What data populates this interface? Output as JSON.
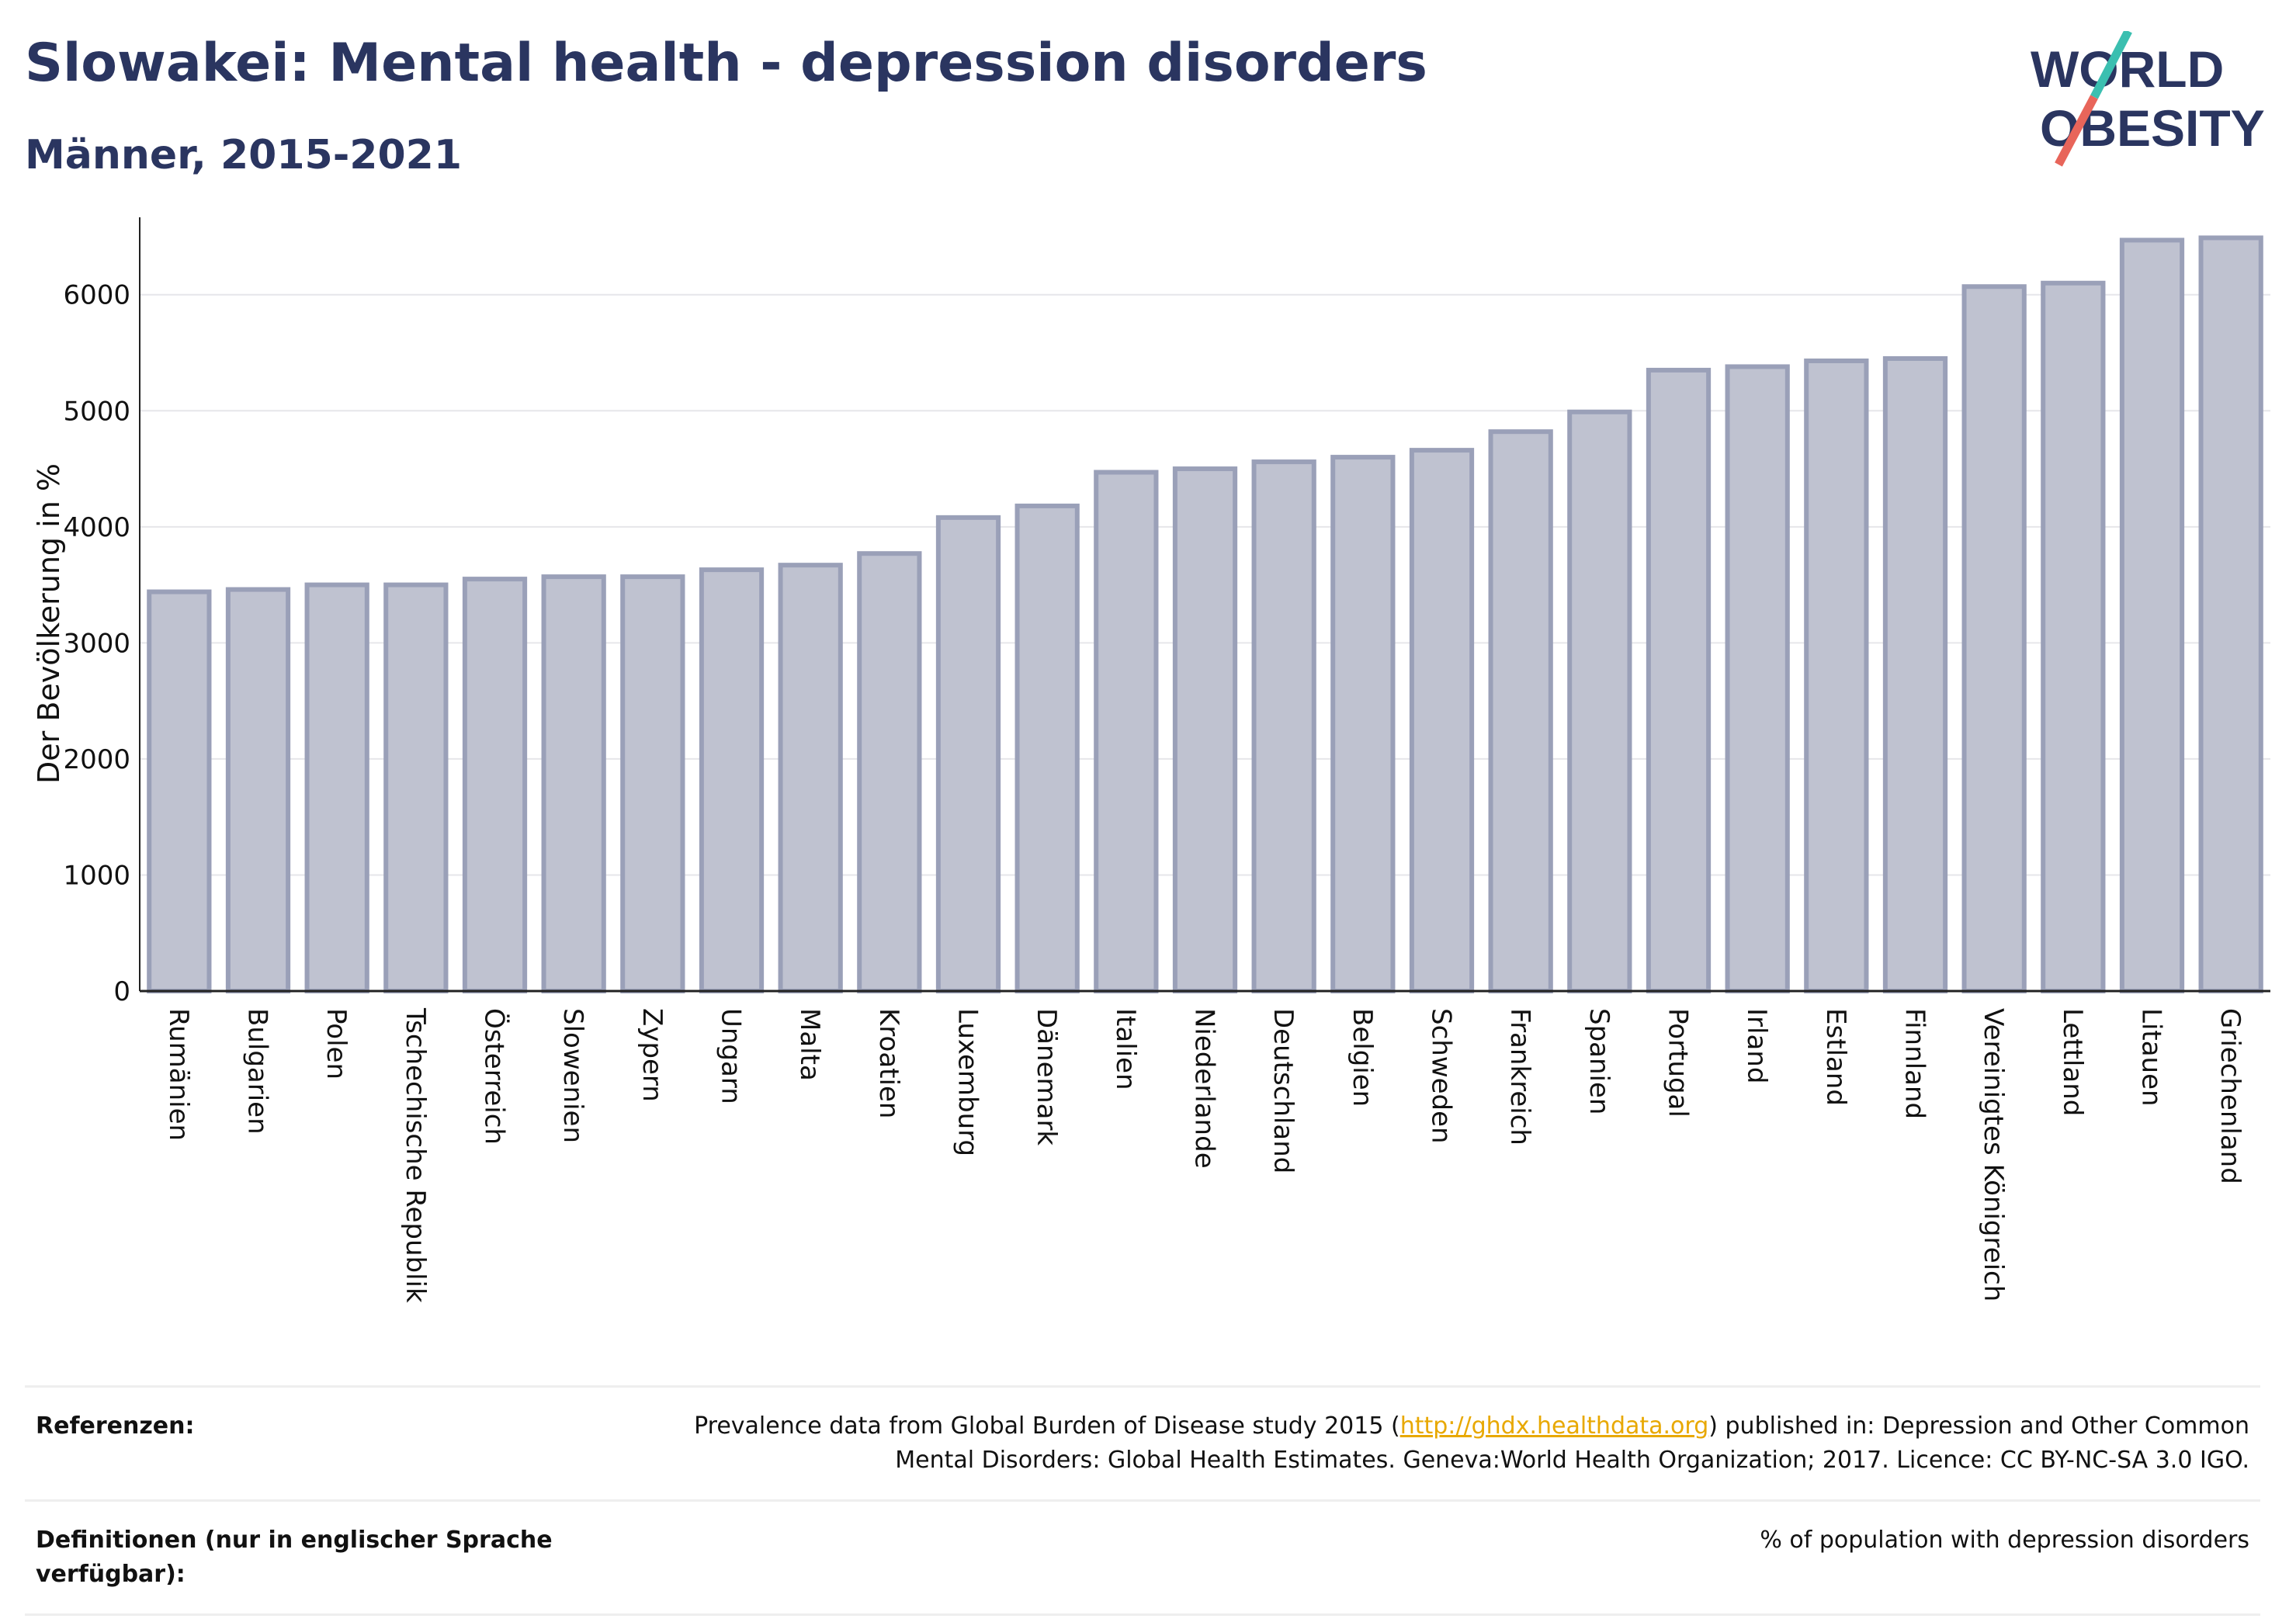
{
  "header": {
    "title": "Slowakei: Mental health - depression disorders",
    "subtitle": "Männer, 2015-2021"
  },
  "logo": {
    "line1": "WORLD",
    "line2": "OBESITY",
    "colors": {
      "text": "#2a3560",
      "slash_top": "#3bbfb0",
      "slash_bottom": "#e8655a"
    }
  },
  "chart_data": {
    "type": "bar",
    "ylabel": "Der Bevölkerung in %",
    "ylim": [
      0,
      6600
    ],
    "yticks": [
      0,
      1000,
      2000,
      3000,
      4000,
      5000,
      6000
    ],
    "grid": true,
    "bar_fill": "#bfc2d0",
    "bar_stroke": "#9aa0b8",
    "categories": [
      "Rumänien",
      "Bulgarien",
      "Polen",
      "Tschechische Republik",
      "Österreich",
      "Slowenien",
      "Zypern",
      "Ungarn",
      "Malta",
      "Kroatien",
      "Luxemburg",
      "Dänemark",
      "Italien",
      "Niederlande",
      "Deutschland",
      "Belgien",
      "Schweden",
      "Frankreich",
      "Spanien",
      "Portugal",
      "Irland",
      "Estland",
      "Finnland",
      "Vereinigtes Königreich",
      "Lettland",
      "Litauen",
      "Griechenland"
    ],
    "values": [
      3440,
      3460,
      3500,
      3500,
      3550,
      3570,
      3570,
      3630,
      3670,
      3770,
      4080,
      4180,
      4470,
      4500,
      4560,
      4600,
      4660,
      4820,
      4990,
      5350,
      5380,
      5430,
      5450,
      6070,
      6100,
      6470,
      6490
    ]
  },
  "references": {
    "row1": {
      "label": "Referenzen:",
      "text_before": "Prevalence data from Global Burden of Disease study 2015 (",
      "link": "http://ghdx.healthdata.org",
      "text_after": ") published in: Depression and Other Common Mental Disorders: Global Health Estimates. Geneva:World Health Organization; 2017. Licence: CC BY-NC-SA 3.0 IGO."
    },
    "row2": {
      "label": "Definitionen (nur in englischer Sprache verfügbar):",
      "text": "% of population with depression disorders"
    }
  }
}
